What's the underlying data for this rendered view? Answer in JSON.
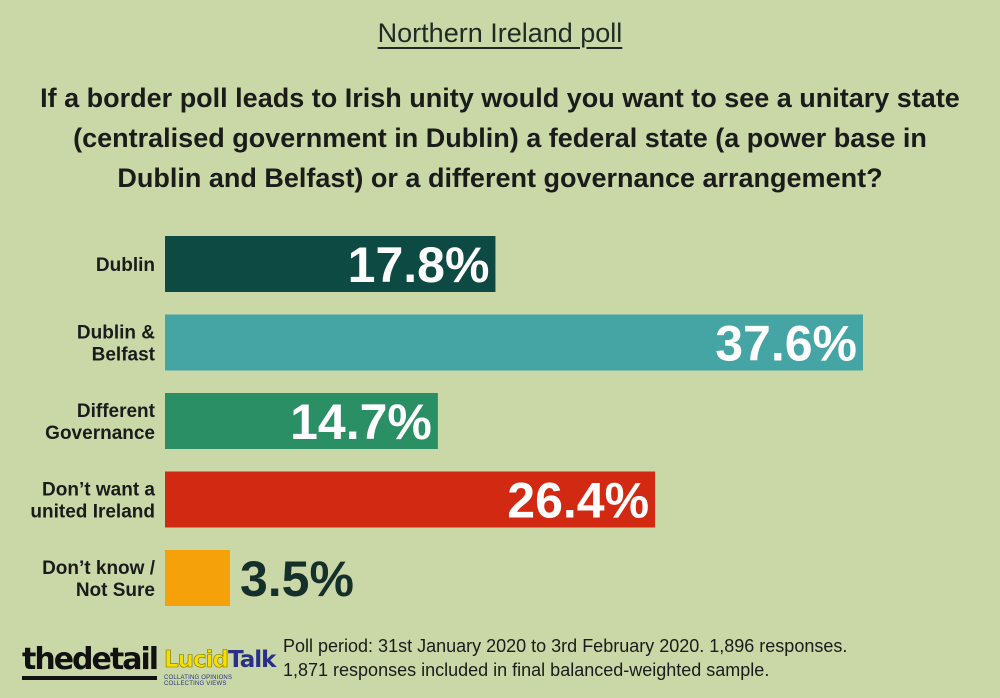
{
  "kicker": "Northern Ireland poll",
  "title": "If a border poll leads to Irish unity would you want to see a unitary state (centralised government in Dublin) a federal state (a power base in Dublin and Belfast) or a different governance arrangement?",
  "chart_data": {
    "type": "bar",
    "orientation": "horizontal",
    "title": "If a border poll leads to Irish unity would you want to see a unitary state (centralised government in Dublin) a federal state (a power base in Dublin and Belfast) or a different governance arrangement?",
    "categories": [
      [
        "Dublin"
      ],
      [
        "Dublin &",
        "Belfast"
      ],
      [
        "Different",
        "Governance"
      ],
      [
        "Don’t want a",
        "united Ireland"
      ],
      [
        "Don’t know /",
        "Not Sure"
      ]
    ],
    "values": [
      17.8,
      37.6,
      14.7,
      26.4,
      3.5
    ],
    "value_labels": [
      "17.8%",
      "37.6%",
      "14.7%",
      "26.4%",
      "3.5%"
    ],
    "colors": [
      "#0e4a44",
      "#45a4a4",
      "#2a8f65",
      "#d22a12",
      "#f5a20a"
    ],
    "xlim": [
      0,
      37.6
    ],
    "grid": false
  },
  "logos": {
    "thedetail": "thedetail",
    "lucidtalk_1": "Lucid",
    "lucidtalk_2": "Talk",
    "lucidtalk_tagline": "COLLATING OPINIONS COLLECTING VIEWS"
  },
  "footnote": {
    "line1": "Poll period: 31st January 2020 to 3rd February 2020. 1,896 responses.",
    "line2": "1,871 responses included in final balanced-weighted sample."
  }
}
